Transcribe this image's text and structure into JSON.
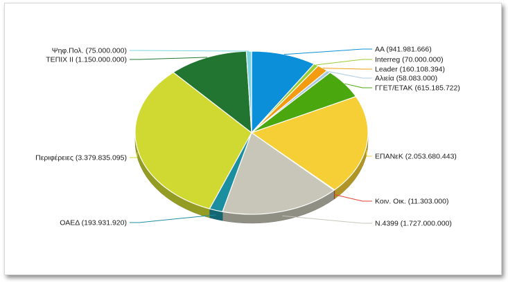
{
  "chart_data": {
    "type": "pie",
    "title": "",
    "legend": "none",
    "slices": [
      {
        "name": "ΑΑ",
        "value": 941981666,
        "label": "ΑΑ (941.981.666)",
        "color": "#0a8fd8",
        "side": "right"
      },
      {
        "name": "Interreg",
        "value": 70000000,
        "label": "Interreg (70.000.000)",
        "color": "#9acd32",
        "side": "right"
      },
      {
        "name": "Leader",
        "value": 160108394,
        "label": "Leader (160.108.394)",
        "color": "#f39c12",
        "side": "right"
      },
      {
        "name": "Αλιεία",
        "value": 58083000,
        "label": "Αλιεία (58.083.000)",
        "color": "#a9c8e0",
        "side": "right"
      },
      {
        "name": "ΓΓΕΤ/ΕΤΑΚ",
        "value": 615185722,
        "label": "ΓΓΕΤ/ΕΤΑΚ (615.185.722)",
        "color": "#4aa80e",
        "side": "right"
      },
      {
        "name": "ΕΠΑΝεΚ",
        "value": 2053680443,
        "label": "ΕΠΑΝεΚ (2.053.680.443)",
        "color": "#f5cf35",
        "side": "right"
      },
      {
        "name": "Κοιν. Οικ.",
        "value": 11303000,
        "label": "Κοιν. Οικ. (11.303.000)",
        "color": "#e0402a",
        "side": "right"
      },
      {
        "name": "Ν.4399",
        "value": 1727000000,
        "label": "Ν.4399 (1.727.000.000)",
        "color": "#c8c6b8",
        "side": "right"
      },
      {
        "name": "ΟΑΕΔ",
        "value": 193931920,
        "label": "ΟΑΕΔ (193.931.920)",
        "color": "#1b8ea0",
        "side": "left"
      },
      {
        "name": "Περιφέρειες",
        "value": 3379835095,
        "label": "Περιφέρειες (3.379.835.095)",
        "color": "#cfd931",
        "side": "left"
      },
      {
        "name": "ΤΕΠΙΧ ΙΙ",
        "value": 1150000000,
        "label": "ΤΕΠΙΧ ΙΙ (1.150.000.000)",
        "color": "#217530",
        "side": "left"
      },
      {
        "name": "Ψηφ.Πολ.",
        "value": 75000000,
        "label": "Ψηφ.Πολ. (75.000.000)",
        "color": "#79d4de",
        "side": "left"
      }
    ]
  }
}
